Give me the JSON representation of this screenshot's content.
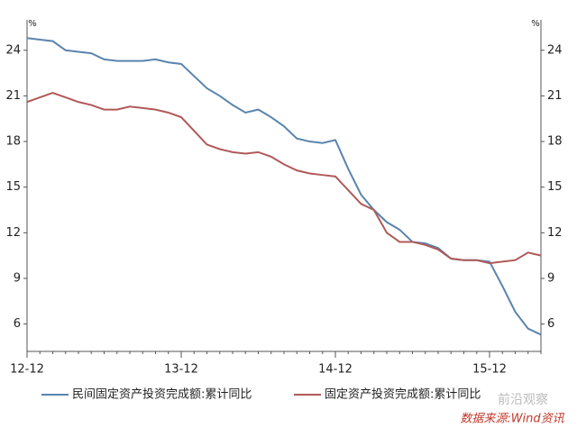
{
  "chart_data": {
    "type": "line",
    "y_unit": "%",
    "categories": [
      "12-12",
      null,
      null,
      null,
      null,
      null,
      null,
      null,
      null,
      null,
      null,
      null,
      "13-12",
      null,
      null,
      null,
      null,
      null,
      null,
      null,
      null,
      null,
      null,
      null,
      "14-12",
      null,
      null,
      null,
      null,
      null,
      null,
      null,
      null,
      null,
      null,
      null,
      "15-12",
      null,
      null,
      null,
      null
    ],
    "series": [
      {
        "name": "民间固定资产投资完成额:累计同比",
        "color": "#5a84ad",
        "values": [
          24.8,
          24.7,
          24.6,
          24.0,
          23.9,
          23.8,
          23.4,
          23.3,
          23.3,
          23.3,
          23.4,
          23.2,
          23.1,
          22.3,
          21.5,
          21.0,
          20.4,
          19.9,
          20.1,
          19.6,
          19.0,
          18.2,
          18.0,
          17.9,
          18.1,
          16.2,
          14.5,
          13.5,
          12.7,
          12.2,
          11.4,
          11.3,
          11.0,
          10.3,
          10.2,
          10.2,
          10.1,
          8.5,
          6.8,
          5.7,
          5.3
        ]
      },
      {
        "name": "固定资产投资完成额:累计同比",
        "color": "#b05a58",
        "values": [
          20.6,
          20.9,
          21.2,
          20.9,
          20.6,
          20.4,
          20.1,
          20.1,
          20.3,
          20.2,
          20.1,
          19.9,
          19.6,
          18.7,
          17.8,
          17.5,
          17.3,
          17.2,
          17.3,
          17.0,
          16.5,
          16.1,
          15.9,
          15.8,
          15.7,
          14.8,
          13.9,
          13.5,
          12.0,
          11.4,
          11.4,
          11.2,
          10.9,
          10.3,
          10.2,
          10.2,
          10.0,
          10.1,
          10.2,
          10.7,
          10.5
        ]
      }
    ],
    "ylim": [
      4.2,
      26
    ],
    "yticks": [
      6,
      9,
      12,
      15,
      18,
      21,
      24
    ],
    "grid": false,
    "watermark": "前沿观察",
    "source": "数据来源:Wind资讯"
  }
}
